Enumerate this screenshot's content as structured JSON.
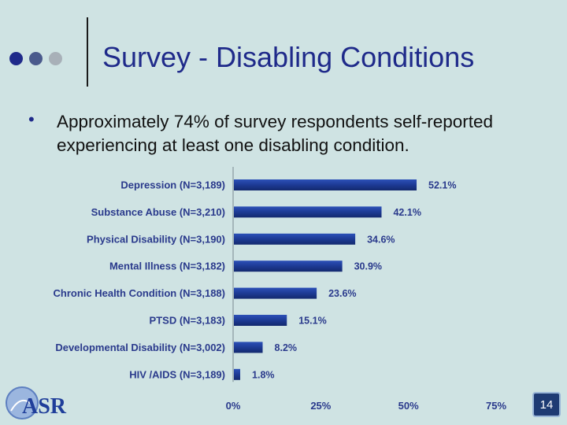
{
  "slide": {
    "title": "Survey - Disabling Conditions",
    "bullet": "Approximately 74% of survey respondents self-reported experiencing at least one disabling condition.",
    "page_number": "14",
    "logo_text": "ASR",
    "dot_colors": [
      "#1f2a8a",
      "#4a5a8c",
      "#a8b0b8"
    ]
  },
  "chart_data": {
    "type": "bar",
    "orientation": "horizontal",
    "categories": [
      "Depression (N=3,189)",
      "Substance Abuse (N=3,210)",
      "Physical Disability (N=3,190)",
      "Mental Illness (N=3,182)",
      "Chronic Health Condition (N=3,188)",
      "PTSD (N=3,183)",
      "Developmental Disability (N=3,002)",
      "HIV /AIDS (N=3,189)"
    ],
    "values": [
      52.1,
      42.1,
      34.6,
      30.9,
      23.6,
      15.1,
      8.2,
      1.8
    ],
    "value_labels": [
      "52.1%",
      "42.1%",
      "34.6%",
      "30.9%",
      "23.6%",
      "15.1%",
      "8.2%",
      "1.8%"
    ],
    "xlim": [
      0,
      75
    ],
    "xticks": [
      0,
      25,
      50,
      75
    ],
    "xtick_labels": [
      "0%",
      "25%",
      "50%",
      "75%"
    ],
    "bar_color": "#1f3e9a",
    "grid": false
  }
}
